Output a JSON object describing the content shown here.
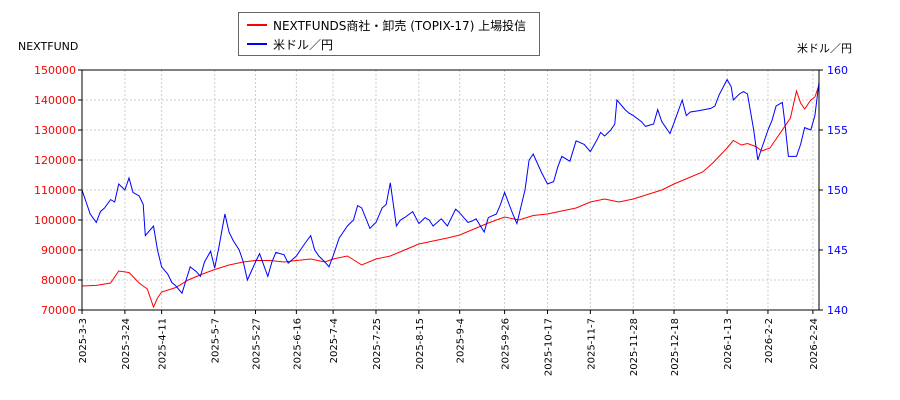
{
  "chart_data": {
    "type": "line",
    "left_axis_title": "NEXTFUND",
    "right_axis_title": "米ドル／円",
    "left_ylim": [
      70000,
      150000
    ],
    "left_yticks": [
      70000,
      80000,
      90000,
      100000,
      110000,
      120000,
      130000,
      140000,
      150000
    ],
    "right_ylim": [
      140,
      160
    ],
    "right_yticks": [
      140,
      145,
      150,
      155,
      160
    ],
    "left_axis_color": "#ff0000",
    "right_axis_color": "#0000ff",
    "grid": true,
    "legend_position": "top-center",
    "x_date_range": [
      "2025-03-03",
      "2026-02-27"
    ],
    "xtick_labels": [
      "2025-3-3",
      "2025-3-24",
      "2025-4-11",
      "2025-5-7",
      "2025-5-27",
      "2025-6-16",
      "2025-7-4",
      "2025-7-25",
      "2025-8-15",
      "2025-9-4",
      "2025-9-26",
      "2025-10-17",
      "2025-11-7",
      "2025-11-28",
      "2025-12-18",
      "2026-1-13",
      "2026-2-2",
      "2026-2-24"
    ],
    "series": [
      {
        "name": "NEXTFUNDS商社・卸売 (TOPIX-17) 上場投信",
        "axis": "left",
        "color": "#ff0000",
        "points": [
          [
            "2025-03-03",
            78000
          ],
          [
            "2025-03-10",
            78200
          ],
          [
            "2025-03-17",
            79000
          ],
          [
            "2025-03-21",
            83000
          ],
          [
            "2025-03-26",
            82500
          ],
          [
            "2025-03-31",
            79000
          ],
          [
            "2025-04-04",
            77000
          ],
          [
            "2025-04-07",
            71000
          ],
          [
            "2025-04-09",
            74000
          ],
          [
            "2025-04-11",
            76000
          ],
          [
            "2025-04-18",
            77500
          ],
          [
            "2025-04-24",
            80000
          ],
          [
            "2025-05-01",
            82000
          ],
          [
            "2025-05-07",
            83500
          ],
          [
            "2025-05-14",
            85000
          ],
          [
            "2025-05-21",
            86000
          ],
          [
            "2025-05-27",
            86500
          ],
          [
            "2025-06-03",
            86500
          ],
          [
            "2025-06-10",
            86000
          ],
          [
            "2025-06-16",
            86500
          ],
          [
            "2025-06-23",
            87000
          ],
          [
            "2025-06-30",
            86000
          ],
          [
            "2025-07-04",
            87000
          ],
          [
            "2025-07-11",
            88000
          ],
          [
            "2025-07-18",
            85000
          ],
          [
            "2025-07-25",
            87000
          ],
          [
            "2025-08-01",
            88000
          ],
          [
            "2025-08-08",
            90000
          ],
          [
            "2025-08-15",
            92000
          ],
          [
            "2025-08-22",
            93000
          ],
          [
            "2025-08-29",
            94000
          ],
          [
            "2025-09-04",
            95000
          ],
          [
            "2025-09-11",
            97000
          ],
          [
            "2025-09-18",
            99000
          ],
          [
            "2025-09-26",
            101000
          ],
          [
            "2025-10-03",
            100000
          ],
          [
            "2025-10-10",
            101500
          ],
          [
            "2025-10-17",
            102000
          ],
          [
            "2025-10-24",
            103000
          ],
          [
            "2025-10-31",
            104000
          ],
          [
            "2025-11-07",
            106000
          ],
          [
            "2025-11-14",
            107000
          ],
          [
            "2025-11-21",
            106000
          ],
          [
            "2025-11-28",
            107000
          ],
          [
            "2025-12-05",
            108500
          ],
          [
            "2025-12-12",
            110000
          ],
          [
            "2025-12-18",
            112000
          ],
          [
            "2025-12-25",
            114000
          ],
          [
            "2026-01-01",
            116000
          ],
          [
            "2026-01-06",
            119000
          ],
          [
            "2026-01-13",
            124000
          ],
          [
            "2026-01-16",
            126500
          ],
          [
            "2026-01-20",
            125000
          ],
          [
            "2026-01-23",
            125500
          ],
          [
            "2026-01-27",
            124500
          ],
          [
            "2026-01-30",
            123000
          ],
          [
            "2026-02-03",
            124000
          ],
          [
            "2026-02-06",
            127000
          ],
          [
            "2026-02-10",
            131000
          ],
          [
            "2026-02-13",
            134000
          ],
          [
            "2026-02-16",
            143000
          ],
          [
            "2026-02-18",
            139000
          ],
          [
            "2026-02-20",
            137000
          ],
          [
            "2026-02-23",
            140000
          ],
          [
            "2026-02-25",
            141000
          ],
          [
            "2026-02-27",
            145000
          ]
        ]
      },
      {
        "name": "米ドル／円",
        "axis": "right",
        "color": "#0000ff",
        "points": [
          [
            "2025-03-03",
            150.0
          ],
          [
            "2025-03-05",
            149.0
          ],
          [
            "2025-03-07",
            148.0
          ],
          [
            "2025-03-10",
            147.3
          ],
          [
            "2025-03-12",
            148.2
          ],
          [
            "2025-03-14",
            148.5
          ],
          [
            "2025-03-17",
            149.2
          ],
          [
            "2025-03-19",
            149.0
          ],
          [
            "2025-03-21",
            150.5
          ],
          [
            "2025-03-24",
            150.0
          ],
          [
            "2025-03-26",
            151.0
          ],
          [
            "2025-03-28",
            149.8
          ],
          [
            "2025-03-31",
            149.5
          ],
          [
            "2025-04-02",
            148.8
          ],
          [
            "2025-04-03",
            146.2
          ],
          [
            "2025-04-07",
            147.0
          ],
          [
            "2025-04-09",
            145.0
          ],
          [
            "2025-04-11",
            143.6
          ],
          [
            "2025-04-14",
            143.0
          ],
          [
            "2025-04-16",
            142.3
          ],
          [
            "2025-04-18",
            142.0
          ],
          [
            "2025-04-21",
            141.4
          ],
          [
            "2025-04-23",
            142.5
          ],
          [
            "2025-04-25",
            143.6
          ],
          [
            "2025-04-28",
            143.2
          ],
          [
            "2025-04-30",
            142.8
          ],
          [
            "2025-05-02",
            144.0
          ],
          [
            "2025-05-05",
            144.9
          ],
          [
            "2025-05-07",
            143.5
          ],
          [
            "2025-05-09",
            145.2
          ],
          [
            "2025-05-12",
            148.0
          ],
          [
            "2025-05-14",
            146.5
          ],
          [
            "2025-05-16",
            145.8
          ],
          [
            "2025-05-19",
            145.0
          ],
          [
            "2025-05-21",
            144.0
          ],
          [
            "2025-05-23",
            142.5
          ],
          [
            "2025-05-27",
            144.0
          ],
          [
            "2025-05-29",
            144.7
          ],
          [
            "2025-06-02",
            142.8
          ],
          [
            "2025-06-04",
            144.0
          ],
          [
            "2025-06-06",
            144.8
          ],
          [
            "2025-06-10",
            144.6
          ],
          [
            "2025-06-12",
            143.9
          ],
          [
            "2025-06-16",
            144.5
          ],
          [
            "2025-06-18",
            145.0
          ],
          [
            "2025-06-20",
            145.5
          ],
          [
            "2025-06-23",
            146.2
          ],
          [
            "2025-06-25",
            145.0
          ],
          [
            "2025-06-27",
            144.5
          ],
          [
            "2025-06-30",
            144.0
          ],
          [
            "2025-07-02",
            143.6
          ],
          [
            "2025-07-04",
            144.5
          ],
          [
            "2025-07-07",
            146.0
          ],
          [
            "2025-07-09",
            146.5
          ],
          [
            "2025-07-11",
            147.0
          ],
          [
            "2025-07-14",
            147.5
          ],
          [
            "2025-07-16",
            148.7
          ],
          [
            "2025-07-18",
            148.5
          ],
          [
            "2025-07-22",
            146.8
          ],
          [
            "2025-07-25",
            147.3
          ],
          [
            "2025-07-28",
            148.5
          ],
          [
            "2025-07-30",
            148.8
          ],
          [
            "2025-08-01",
            150.6
          ],
          [
            "2025-08-04",
            147.0
          ],
          [
            "2025-08-06",
            147.5
          ],
          [
            "2025-08-08",
            147.7
          ],
          [
            "2025-08-12",
            148.2
          ],
          [
            "2025-08-15",
            147.2
          ],
          [
            "2025-08-18",
            147.7
          ],
          [
            "2025-08-20",
            147.5
          ],
          [
            "2025-08-22",
            147.0
          ],
          [
            "2025-08-26",
            147.6
          ],
          [
            "2025-08-29",
            147.0
          ],
          [
            "2025-09-02",
            148.4
          ],
          [
            "2025-09-04",
            148.1
          ],
          [
            "2025-09-08",
            147.3
          ],
          [
            "2025-09-10",
            147.4
          ],
          [
            "2025-09-12",
            147.6
          ],
          [
            "2025-09-16",
            146.5
          ],
          [
            "2025-09-18",
            147.7
          ],
          [
            "2025-09-22",
            148.0
          ],
          [
            "2025-09-24",
            148.8
          ],
          [
            "2025-09-26",
            149.8
          ],
          [
            "2025-09-30",
            148.0
          ],
          [
            "2025-10-02",
            147.2
          ],
          [
            "2025-10-06",
            150.0
          ],
          [
            "2025-10-08",
            152.5
          ],
          [
            "2025-10-10",
            153.0
          ],
          [
            "2025-10-14",
            151.5
          ],
          [
            "2025-10-17",
            150.5
          ],
          [
            "2025-10-20",
            150.7
          ],
          [
            "2025-10-22",
            151.9
          ],
          [
            "2025-10-24",
            152.8
          ],
          [
            "2025-10-28",
            152.4
          ],
          [
            "2025-10-31",
            154.1
          ],
          [
            "2025-11-04",
            153.8
          ],
          [
            "2025-11-07",
            153.2
          ],
          [
            "2025-11-10",
            154.1
          ],
          [
            "2025-11-12",
            154.8
          ],
          [
            "2025-11-14",
            154.5
          ],
          [
            "2025-11-17",
            155.0
          ],
          [
            "2025-11-19",
            155.5
          ],
          [
            "2025-11-20",
            157.5
          ],
          [
            "2025-11-24",
            156.7
          ],
          [
            "2025-11-26",
            156.4
          ],
          [
            "2025-11-28",
            156.2
          ],
          [
            "2025-12-02",
            155.7
          ],
          [
            "2025-12-04",
            155.3
          ],
          [
            "2025-12-08",
            155.5
          ],
          [
            "2025-12-10",
            156.7
          ],
          [
            "2025-12-12",
            155.7
          ],
          [
            "2025-12-16",
            154.7
          ],
          [
            "2025-12-18",
            155.6
          ],
          [
            "2025-12-22",
            157.5
          ],
          [
            "2025-12-24",
            156.2
          ],
          [
            "2025-12-26",
            156.5
          ],
          [
            "2025-12-30",
            156.6
          ],
          [
            "2026-01-05",
            156.8
          ],
          [
            "2026-01-07",
            157.0
          ],
          [
            "2026-01-09",
            157.9
          ],
          [
            "2026-01-13",
            159.2
          ],
          [
            "2026-01-15",
            158.6
          ],
          [
            "2026-01-16",
            157.5
          ],
          [
            "2026-01-19",
            158.0
          ],
          [
            "2026-01-21",
            158.2
          ],
          [
            "2026-01-23",
            158.0
          ],
          [
            "2026-01-26",
            155.0
          ],
          [
            "2026-01-28",
            152.5
          ],
          [
            "2026-01-30",
            153.5
          ],
          [
            "2026-02-02",
            155.0
          ],
          [
            "2026-02-04",
            155.8
          ],
          [
            "2026-02-06",
            157.0
          ],
          [
            "2026-02-09",
            157.3
          ],
          [
            "2026-02-10",
            156.0
          ],
          [
            "2026-02-12",
            152.8
          ],
          [
            "2026-02-16",
            152.8
          ],
          [
            "2026-02-18",
            153.8
          ],
          [
            "2026-02-20",
            155.2
          ],
          [
            "2026-02-23",
            155.0
          ],
          [
            "2026-02-25",
            156.2
          ],
          [
            "2026-02-27",
            159.0
          ]
        ]
      }
    ]
  }
}
